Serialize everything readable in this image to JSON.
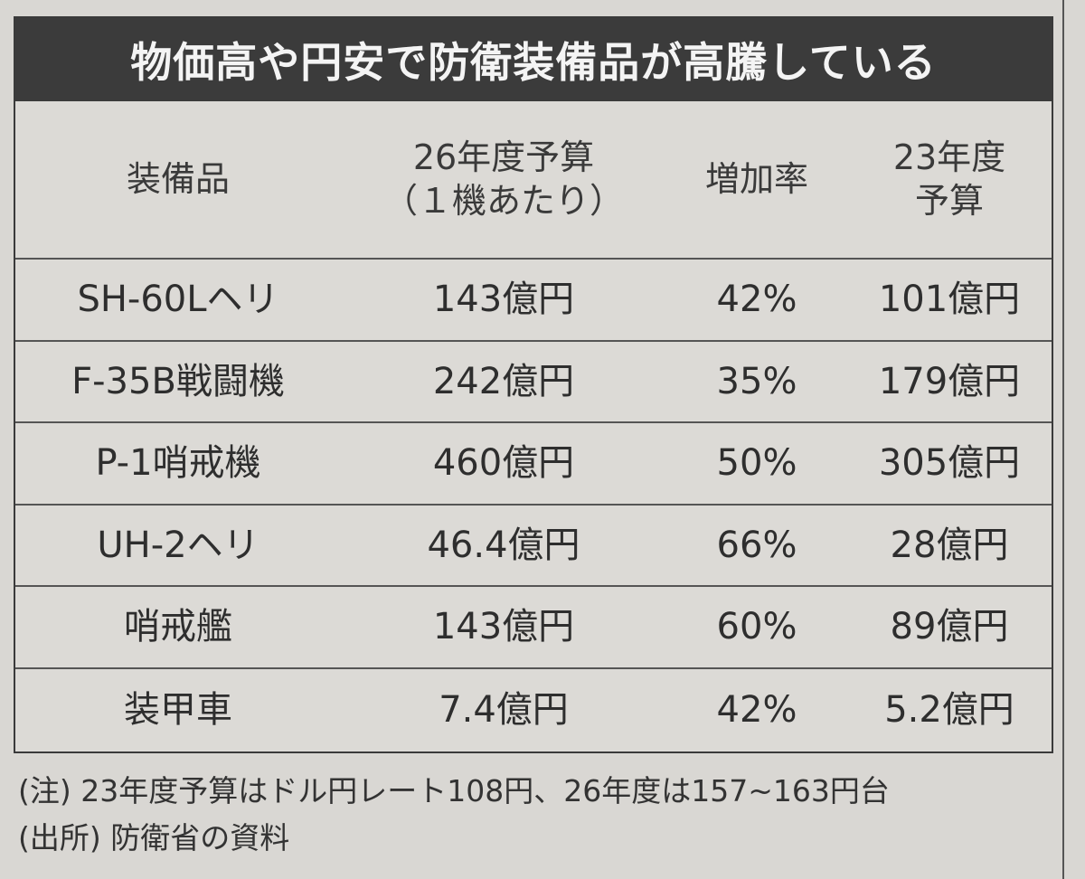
{
  "title": "物価高や円安で防衛装備品が高騰している",
  "table": {
    "header": [
      [
        "装備品"
      ],
      [
        "26年度予算",
        "（１機あたり）"
      ],
      [
        "増加率"
      ],
      [
        "23年度",
        "予算"
      ]
    ],
    "rows": [
      [
        "SH-60Lヘリ",
        "143億円",
        "42%",
        "101億円"
      ],
      [
        "F-35B戦闘機",
        "242億円",
        "35%",
        "179億円"
      ],
      [
        "P-1哨戒機",
        "460億円",
        "50%",
        "305億円"
      ],
      [
        "UH-2ヘリ",
        "46.4億円",
        "66%",
        "28億円"
      ],
      [
        "哨戒艦",
        "143億円",
        "60%",
        "89億円"
      ],
      [
        "装甲車",
        "7.4億円",
        "42%",
        "5.2億円"
      ]
    ]
  },
  "notes": [
    "(注) 23年度予算はドル円レート108円、26年度は157~163円台",
    "(出所) 防衛省の資料"
  ]
}
